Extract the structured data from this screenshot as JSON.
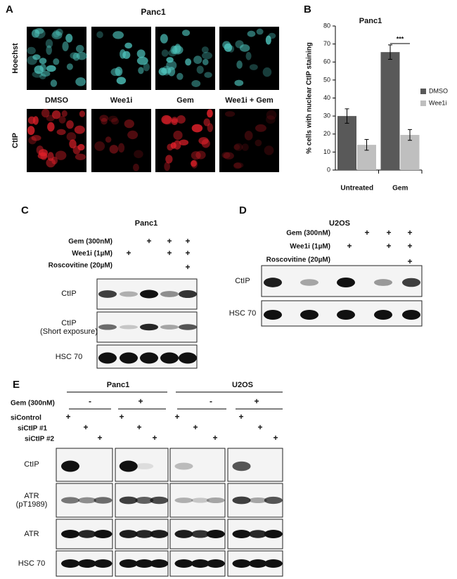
{
  "panel_a": {
    "letter": "A",
    "title": "Panc1",
    "row_labels": [
      "Hoechst",
      "CtIP"
    ],
    "conditions": [
      "DMSO",
      "Wee1i",
      "Gem",
      "Wee1i + Gem"
    ]
  },
  "chart_data": {
    "type": "bar",
    "letter": "B",
    "title": "Panc1",
    "y_label": "% cells with nuclear CtIP staining",
    "categories": [
      "Untreated",
      "Gem"
    ],
    "series": [
      {
        "name": "DMSO",
        "color": "#595959",
        "values": [
          30,
          65.5
        ],
        "errors": [
          4,
          4
        ]
      },
      {
        "name": "Wee1i",
        "color": "#bfbfbf",
        "values": [
          14,
          19.5
        ],
        "errors": [
          3,
          3
        ]
      }
    ],
    "ylim": [
      0,
      80
    ],
    "yticks": [
      0,
      10,
      20,
      30,
      40,
      50,
      60,
      70,
      80
    ],
    "annotation": "***",
    "legend": "right"
  },
  "panel_c": {
    "letter": "C",
    "title": "Panc1",
    "treatments": [
      {
        "label": "Gem (300nM)",
        "signs": [
          "+",
          "+",
          "+"
        ]
      },
      {
        "label": "Wee1i (1µM)",
        "signs": [
          "+",
          "+",
          "+"
        ]
      },
      {
        "label": "Roscovitine (20µM)",
        "signs": [
          "+"
        ]
      }
    ],
    "blot_labels": [
      [
        "CtIP"
      ],
      [
        "CtIP",
        "(Short exposure)"
      ],
      [
        "HSC 70"
      ]
    ]
  },
  "panel_d": {
    "letter": "D",
    "title": "U2OS",
    "treatments": [
      {
        "label": "Gem (300nM)",
        "signs": [
          "+",
          "+",
          "+"
        ]
      },
      {
        "label": "Wee1i (1µM)",
        "signs": [
          "+",
          "+",
          "+"
        ]
      },
      {
        "label": "Roscovitine (20µM)",
        "signs": [
          "+"
        ]
      }
    ],
    "blot_labels": [
      [
        "CtIP"
      ],
      [
        "HSC 70"
      ]
    ]
  },
  "panel_e": {
    "letter": "E",
    "cell_lines": [
      "Panc1",
      "U2OS"
    ],
    "gem": {
      "label": "Gem (300nM)",
      "signs": [
        "-",
        "+",
        "-",
        "+"
      ]
    },
    "sirna": [
      {
        "label": "siControl",
        "signs": [
          "+",
          "+",
          "+",
          "+"
        ]
      },
      {
        "label": "siCtIP #1",
        "signs": [
          "+",
          "+",
          "+",
          "+"
        ]
      },
      {
        "label": "siCtIP #2",
        "signs": [
          "+",
          "+",
          "+",
          "+"
        ]
      }
    ],
    "blot_labels": [
      [
        "CtIP"
      ],
      [
        "ATR",
        "(pT1989)"
      ],
      [
        "ATR"
      ],
      [
        "HSC 70"
      ]
    ]
  }
}
